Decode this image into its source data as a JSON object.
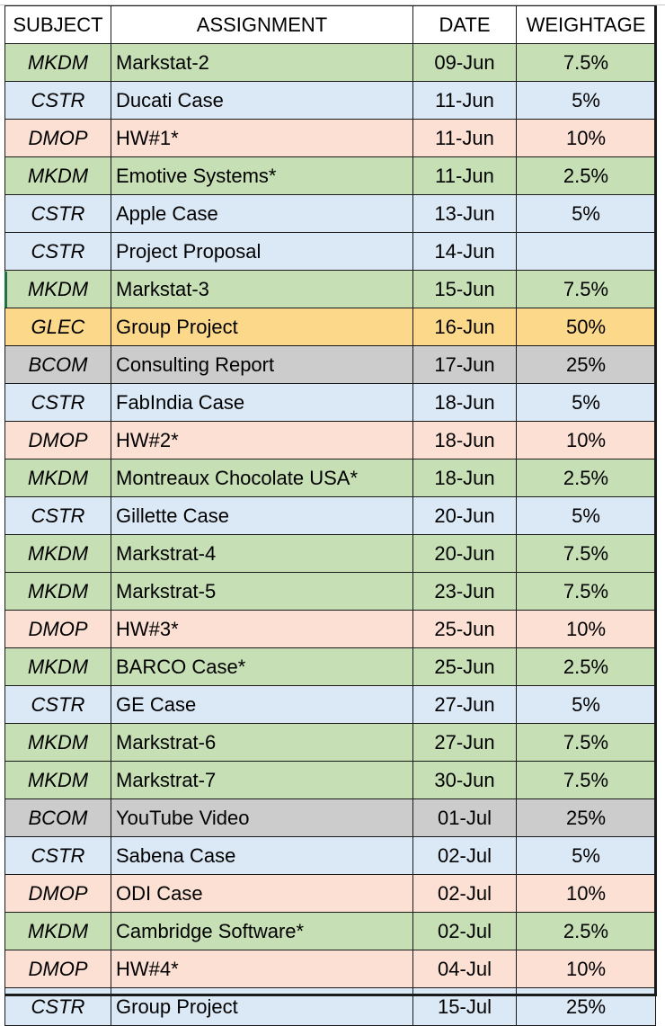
{
  "headers": {
    "subject": "SUBJECT",
    "assignment": "ASSIGNMENT",
    "date": "DATE",
    "weightage": "WEIGHTAGE"
  },
  "colors": {
    "MKDM": "#c6dfb4",
    "CSTR": "#dbe8f5",
    "DMOP": "#fbe0d3",
    "GLEC": "#fcd98a",
    "BCOM": "#cdcccc"
  },
  "rows": [
    {
      "subject": "MKDM",
      "assignment": "Markstat-2",
      "date": "09-Jun",
      "weightage": "7.5%"
    },
    {
      "subject": "CSTR",
      "assignment": "Ducati Case",
      "date": "11-Jun",
      "weightage": "5%"
    },
    {
      "subject": "DMOP",
      "assignment": "HW#1*",
      "date": "11-Jun",
      "weightage": "10%"
    },
    {
      "subject": "MKDM",
      "assignment": "Emotive Systems*",
      "date": "11-Jun",
      "weightage": "2.5%"
    },
    {
      "subject": "CSTR",
      "assignment": "Apple Case",
      "date": "13-Jun",
      "weightage": "5%"
    },
    {
      "subject": "CSTR",
      "assignment": "Project Proposal",
      "date": "14-Jun",
      "weightage": ""
    },
    {
      "subject": "MKDM",
      "assignment": "Markstat-3",
      "date": "15-Jun",
      "weightage": "7.5%"
    },
    {
      "subject": "GLEC",
      "assignment": "Group Project",
      "date": "16-Jun",
      "weightage": "50%"
    },
    {
      "subject": "BCOM",
      "assignment": "Consulting Report",
      "date": "17-Jun",
      "weightage": "25%"
    },
    {
      "subject": "CSTR",
      "assignment": "FabIndia Case",
      "date": "18-Jun",
      "weightage": "5%"
    },
    {
      "subject": "DMOP",
      "assignment": "HW#2*",
      "date": "18-Jun",
      "weightage": "10%"
    },
    {
      "subject": "MKDM",
      "assignment": "Montreaux Chocolate USA*",
      "date": "18-Jun",
      "weightage": "2.5%"
    },
    {
      "subject": "CSTR",
      "assignment": "Gillette Case",
      "date": "20-Jun",
      "weightage": "5%"
    },
    {
      "subject": "MKDM",
      "assignment": "Markstrat-4",
      "date": "20-Jun",
      "weightage": "7.5%"
    },
    {
      "subject": "MKDM",
      "assignment": "Markstrat-5",
      "date": "23-Jun",
      "weightage": "7.5%"
    },
    {
      "subject": "DMOP",
      "assignment": "HW#3*",
      "date": "25-Jun",
      "weightage": "10%"
    },
    {
      "subject": "MKDM",
      "assignment": "BARCO Case*",
      "date": "25-Jun",
      "weightage": "2.5%"
    },
    {
      "subject": "CSTR",
      "assignment": "GE Case",
      "date": "27-Jun",
      "weightage": "5%"
    },
    {
      "subject": "MKDM",
      "assignment": "Markstrat-6",
      "date": "27-Jun",
      "weightage": "7.5%"
    },
    {
      "subject": "MKDM",
      "assignment": "Markstrat-7",
      "date": "30-Jun",
      "weightage": "7.5%"
    },
    {
      "subject": "BCOM",
      "assignment": "YouTube Video",
      "date": "01-Jul",
      "weightage": "25%"
    },
    {
      "subject": "CSTR",
      "assignment": "Sabena Case",
      "date": "02-Jul",
      "weightage": "5%"
    },
    {
      "subject": "DMOP",
      "assignment": "ODI Case",
      "date": "02-Jul",
      "weightage": "10%"
    },
    {
      "subject": "MKDM",
      "assignment": "Cambridge Software*",
      "date": "02-Jul",
      "weightage": "2.5%"
    },
    {
      "subject": "DMOP",
      "assignment": "HW#4*",
      "date": "04-Jul",
      "weightage": "10%"
    },
    {
      "subject": "CSTR",
      "assignment": "Group Project",
      "date": "15-Jul",
      "weightage": "25%"
    }
  ]
}
